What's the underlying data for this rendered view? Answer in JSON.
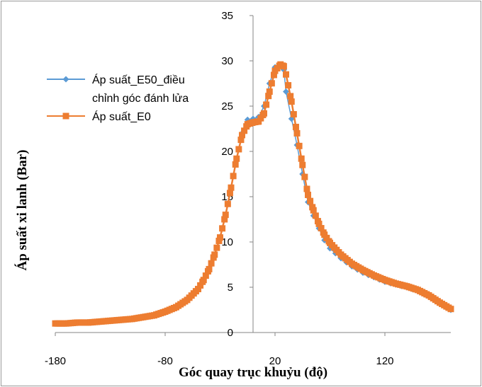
{
  "chart_data": {
    "type": "line",
    "xlabel": "Góc quay trục khuỷu (độ)",
    "ylabel": "Áp suất xi lanh (Bar)",
    "xlim": [
      -180,
      180
    ],
    "ylim": [
      0,
      35
    ],
    "x_ticks": [
      -180,
      -80,
      20,
      120
    ],
    "y_ticks": [
      0,
      5,
      10,
      15,
      20,
      25,
      30,
      35
    ],
    "grid": false,
    "legend_position": "top-left",
    "series": [
      {
        "name": "Áp suất_E50_điều chỉnh góc đánh lửa",
        "legend_lines": [
          "Áp suất_E50_điều",
          "chỉnh góc đánh lửa"
        ],
        "color": "#5B9BD5",
        "marker": "diamond",
        "x": [
          -180,
          -170,
          -160,
          -150,
          -140,
          -130,
          -120,
          -110,
          -100,
          -90,
          -80,
          -70,
          -60,
          -50,
          -45,
          -40,
          -35,
          -30,
          -25,
          -20,
          -15,
          -10,
          -5,
          0,
          5,
          10,
          15,
          20,
          25,
          28,
          30,
          35,
          40,
          45,
          50,
          55,
          60,
          65,
          70,
          80,
          90,
          100,
          110,
          120,
          130,
          140,
          150,
          160,
          170,
          180
        ],
        "y": [
          1.0,
          1.0,
          1.1,
          1.1,
          1.2,
          1.3,
          1.4,
          1.5,
          1.7,
          1.9,
          2.3,
          2.8,
          3.6,
          4.8,
          5.8,
          7.0,
          8.6,
          10.5,
          13.0,
          16.0,
          19.2,
          22.0,
          23.5,
          23.6,
          23.8,
          25.0,
          27.5,
          29.3,
          29.5,
          29.0,
          26.6,
          23.6,
          20.7,
          17.5,
          14.4,
          12.9,
          11.5,
          10.2,
          9.3,
          8.2,
          7.3,
          6.6,
          6.1,
          5.6,
          5.3,
          5.0,
          4.6,
          4.0,
          3.2,
          2.5
        ]
      },
      {
        "name": "Áp suất_E0",
        "legend_lines": [
          "Áp suất_E0"
        ],
        "color": "#ED7D31",
        "marker": "square",
        "x": [
          -180,
          -170,
          -160,
          -150,
          -140,
          -130,
          -120,
          -110,
          -100,
          -90,
          -80,
          -70,
          -60,
          -50,
          -45,
          -40,
          -35,
          -30,
          -25,
          -20,
          -15,
          -10,
          -5,
          0,
          5,
          10,
          15,
          20,
          25,
          28,
          30,
          35,
          40,
          45,
          50,
          55,
          60,
          65,
          70,
          80,
          90,
          100,
          110,
          120,
          130,
          140,
          150,
          160,
          170,
          180
        ],
        "y": [
          1.0,
          1.0,
          1.1,
          1.1,
          1.2,
          1.3,
          1.4,
          1.5,
          1.7,
          1.9,
          2.3,
          2.8,
          3.6,
          4.8,
          5.8,
          7.0,
          8.6,
          10.5,
          13.0,
          16.0,
          19.2,
          21.8,
          23.0,
          23.2,
          23.3,
          24.2,
          26.6,
          28.9,
          29.6,
          29.4,
          28.5,
          25.5,
          22.0,
          18.5,
          15.2,
          13.5,
          12.0,
          10.8,
          9.9,
          8.6,
          7.6,
          6.9,
          6.3,
          5.8,
          5.4,
          5.1,
          4.7,
          4.1,
          3.3,
          2.6
        ]
      }
    ]
  }
}
